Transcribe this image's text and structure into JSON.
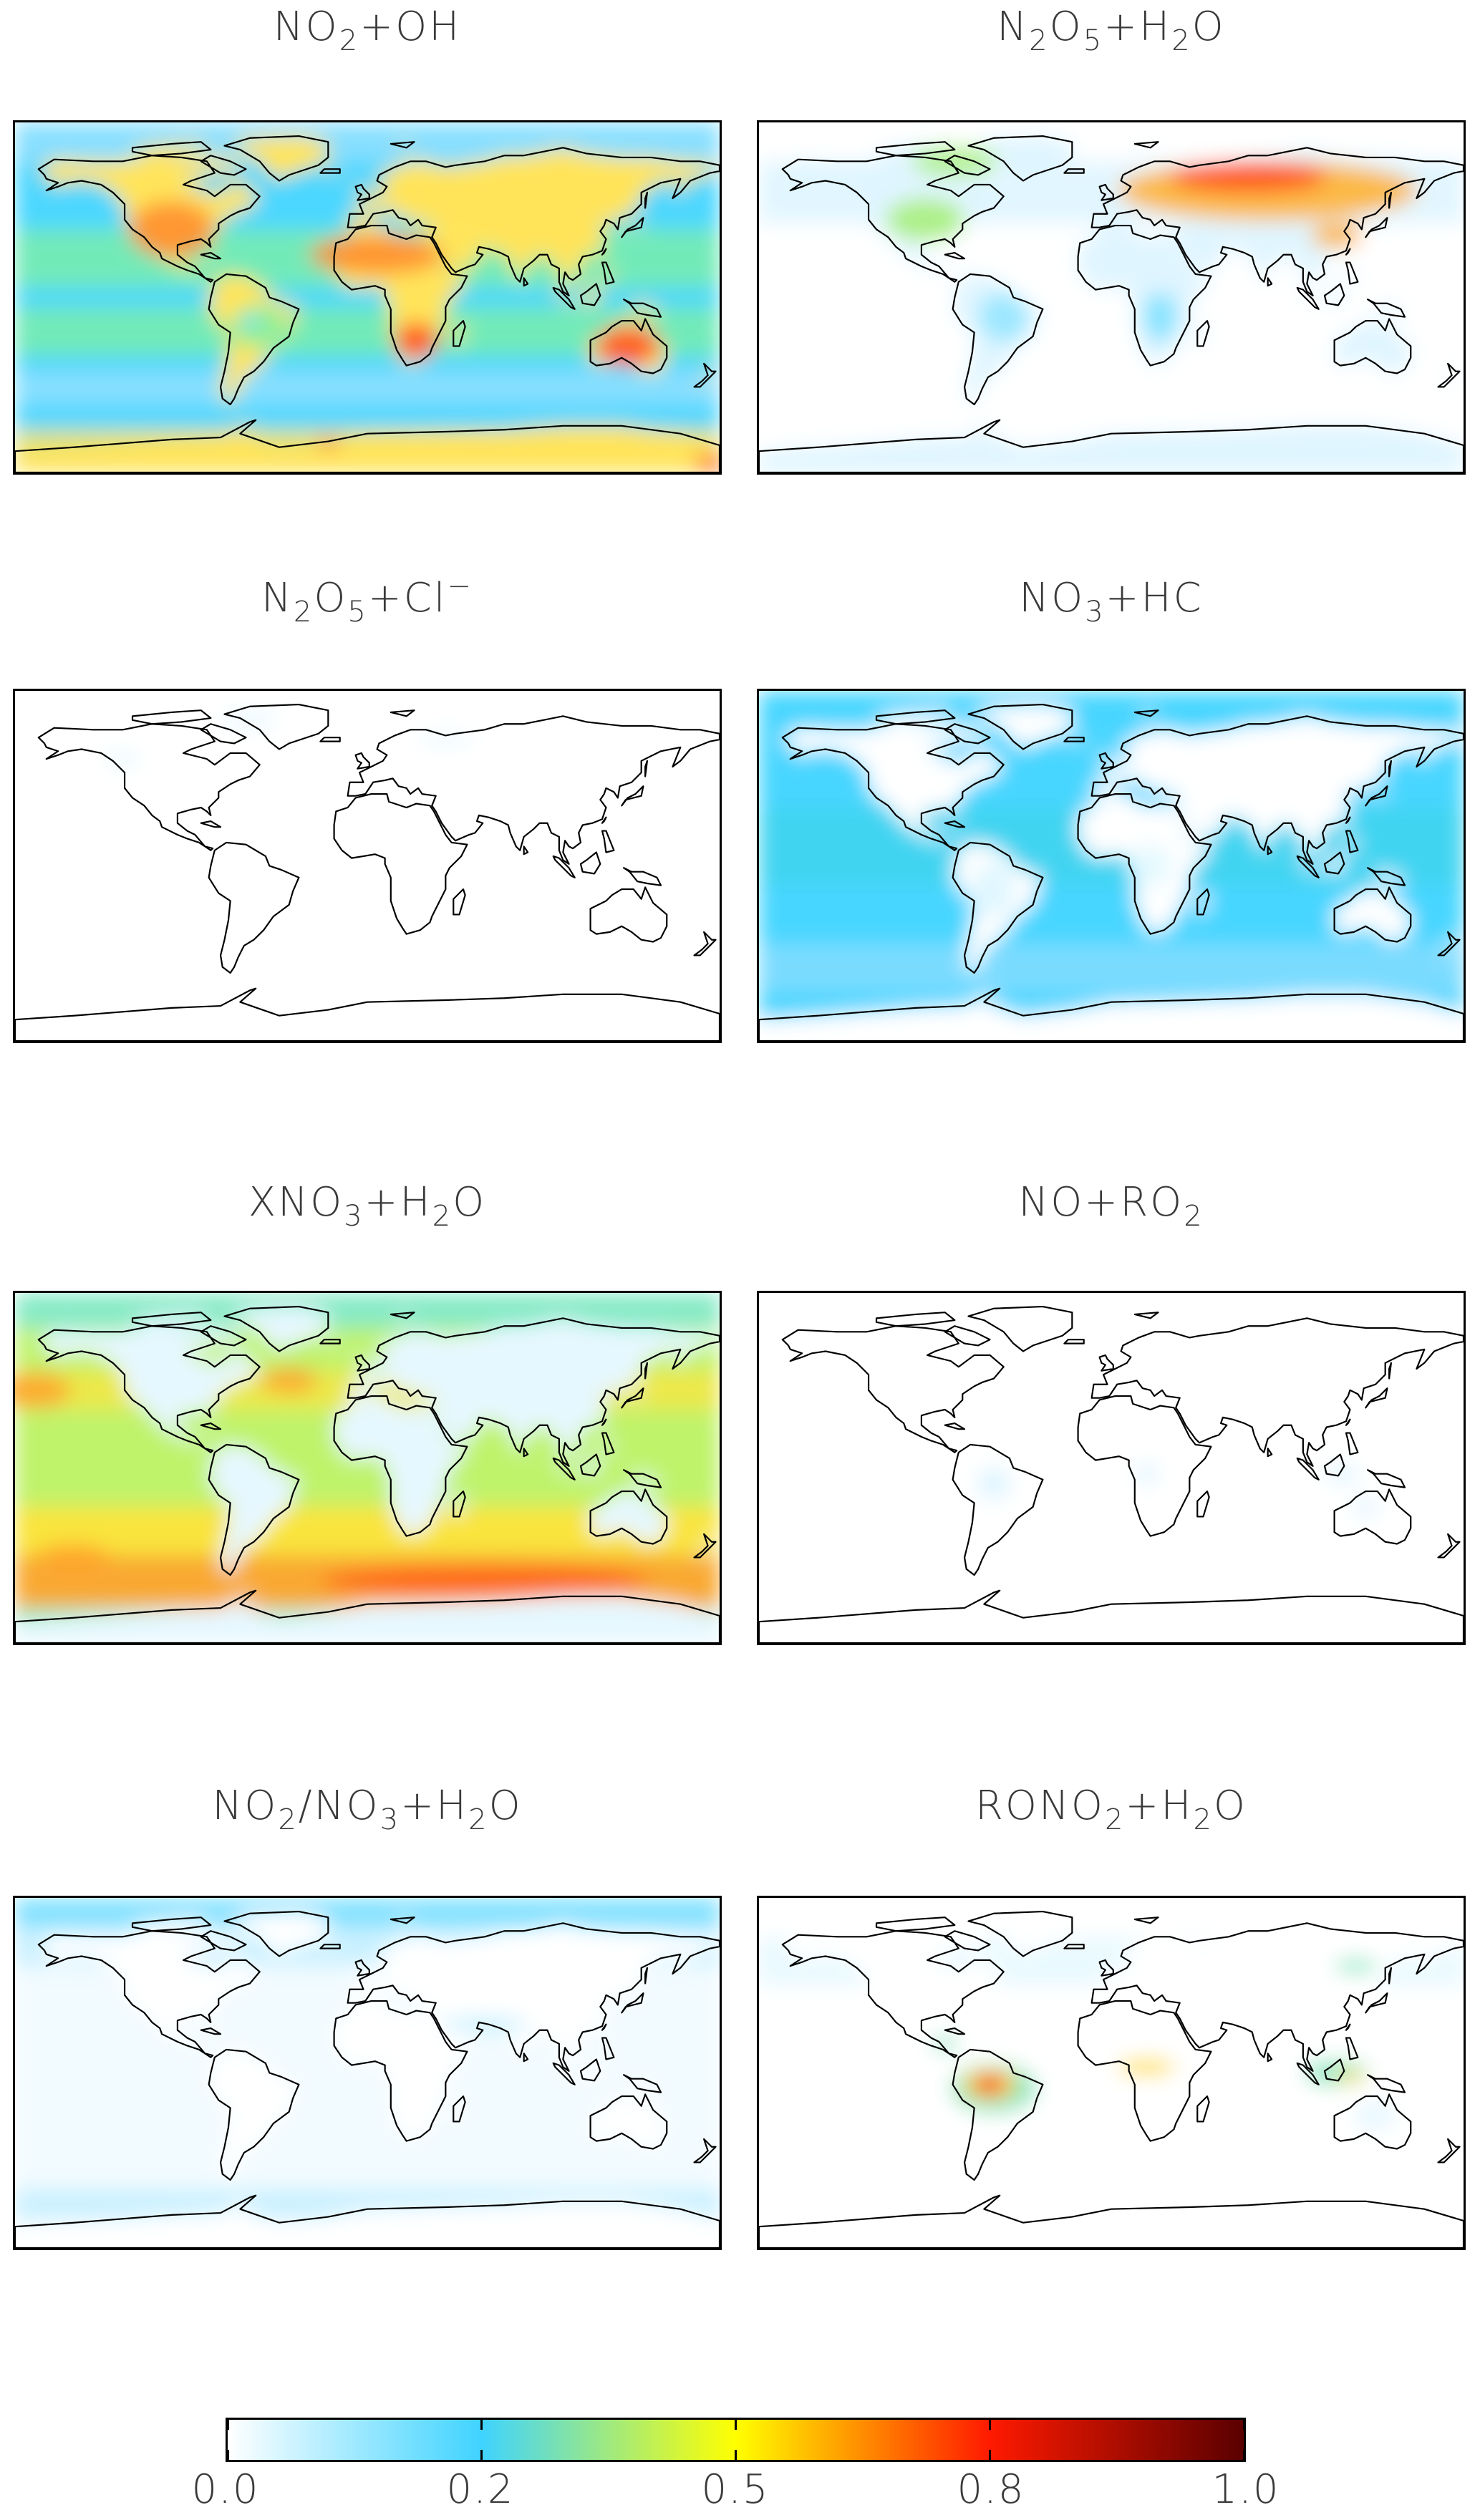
{
  "panels": [
    {
      "title_parts": [
        [
          "NO",
          "n"
        ],
        [
          "2",
          "sub"
        ],
        [
          "+OH",
          "n"
        ]
      ],
      "field": "no2_oh",
      "colors": [
        "#8ee0ff",
        "#4cd7ff",
        "#7ff0a0",
        "#ffe45a",
        "#ff8a2a",
        "#ff4b1a"
      ]
    },
    {
      "title_parts": [
        [
          "N",
          "n"
        ],
        [
          "2",
          "sub"
        ],
        [
          "O",
          "n"
        ],
        [
          "5",
          "sub"
        ],
        [
          "+H",
          "n"
        ],
        [
          "2",
          "sub"
        ],
        [
          "O",
          "n"
        ]
      ],
      "field": "n2o5_h2o",
      "colors": [
        "#ffffff",
        "#dff5ff",
        "#7fe1ff",
        "#a8f07a",
        "#ffb233",
        "#ff4a14"
      ]
    },
    {
      "title_parts": [
        [
          "N",
          "n"
        ],
        [
          "2",
          "sub"
        ],
        [
          "O",
          "n"
        ],
        [
          "5",
          "sub"
        ],
        [
          "+Cl",
          "n"
        ],
        [
          "−",
          "sup"
        ]
      ],
      "field": "n2o5_cl",
      "colors": [
        "#ffffff",
        "#ffffff",
        "#eaf9ff"
      ]
    },
    {
      "title_parts": [
        [
          "NO",
          "n"
        ],
        [
          "3",
          "sub"
        ],
        [
          "+HC",
          "n"
        ]
      ],
      "field": "no3_hc",
      "colors": [
        "#ffffff",
        "#dff7ff",
        "#7fdcff",
        "#47d6ff",
        "#3dd4e6"
      ]
    },
    {
      "title_parts": [
        [
          "XNO",
          "n"
        ],
        [
          "3",
          "sub"
        ],
        [
          "+H",
          "n"
        ],
        [
          "2",
          "sub"
        ],
        [
          "O",
          "n"
        ]
      ],
      "field": "xno3_h2o",
      "colors": [
        "#e6f8ff",
        "#7ee9d0",
        "#bff36a",
        "#ffe23a",
        "#ffa12a",
        "#ff5a16"
      ]
    },
    {
      "title_parts": [
        [
          "NO+RO",
          "n"
        ],
        [
          "2",
          "sub"
        ]
      ],
      "field": "no_ro2",
      "colors": [
        "#ffffff",
        "#ffffff",
        "#dcf4ff"
      ]
    },
    {
      "title_parts": [
        [
          "NO",
          "n"
        ],
        [
          "2",
          "sub"
        ],
        [
          "/NO",
          "n"
        ],
        [
          "3",
          "sub"
        ],
        [
          "+H",
          "n"
        ],
        [
          "2",
          "sub"
        ],
        [
          "O",
          "n"
        ]
      ],
      "field": "no2no3_h2o",
      "colors": [
        "#ffffff",
        "#f2fbff",
        "#bdeeff",
        "#6ddcff"
      ]
    },
    {
      "title_parts": [
        [
          "RONO",
          "n"
        ],
        [
          "2",
          "sub"
        ],
        [
          "+H",
          "n"
        ],
        [
          "2",
          "sub"
        ],
        [
          "O",
          "n"
        ]
      ],
      "field": "rono2_h2o",
      "colors": [
        "#ffffff",
        "#e6f8ff",
        "#7fe6c0",
        "#ffe03a",
        "#ff6020",
        "#e81010"
      ]
    }
  ],
  "colorbar": {
    "min": 0.0,
    "max": 1.0,
    "ticks": [
      {
        "value": 0.0,
        "label": "0.0"
      },
      {
        "value": 0.25,
        "label": "0.2"
      },
      {
        "value": 0.5,
        "label": "0.5"
      },
      {
        "value": 0.75,
        "label": "0.8"
      },
      {
        "value": 1.0,
        "label": "1.0"
      }
    ],
    "stops": [
      "#ffffff",
      "#3fd3ff",
      "#ffff00",
      "#ff1a00",
      "#5a0000"
    ]
  }
}
